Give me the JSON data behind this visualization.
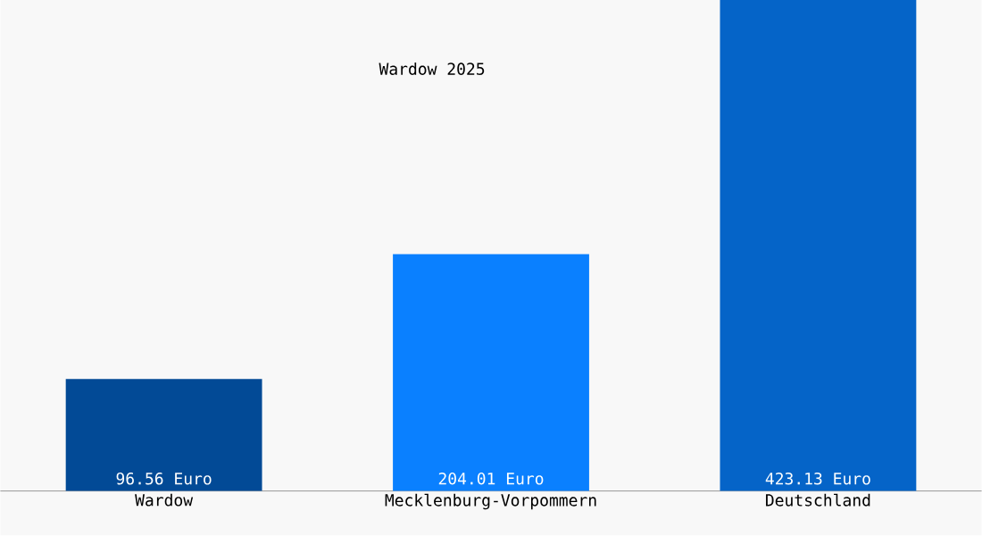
{
  "chart_data": {
    "type": "bar",
    "title": "Wardow 2025",
    "categories": [
      "Wardow",
      "Mecklenburg-Vorpommern",
      "Deutschland"
    ],
    "values": [
      96.56,
      204.01,
      423.13
    ],
    "colors": [
      "#024a96",
      "#0a80ff",
      "#0564c8"
    ],
    "value_labels": [
      "96.56 Euro",
      "204.01 Euro",
      "423.13 Euro"
    ]
  }
}
